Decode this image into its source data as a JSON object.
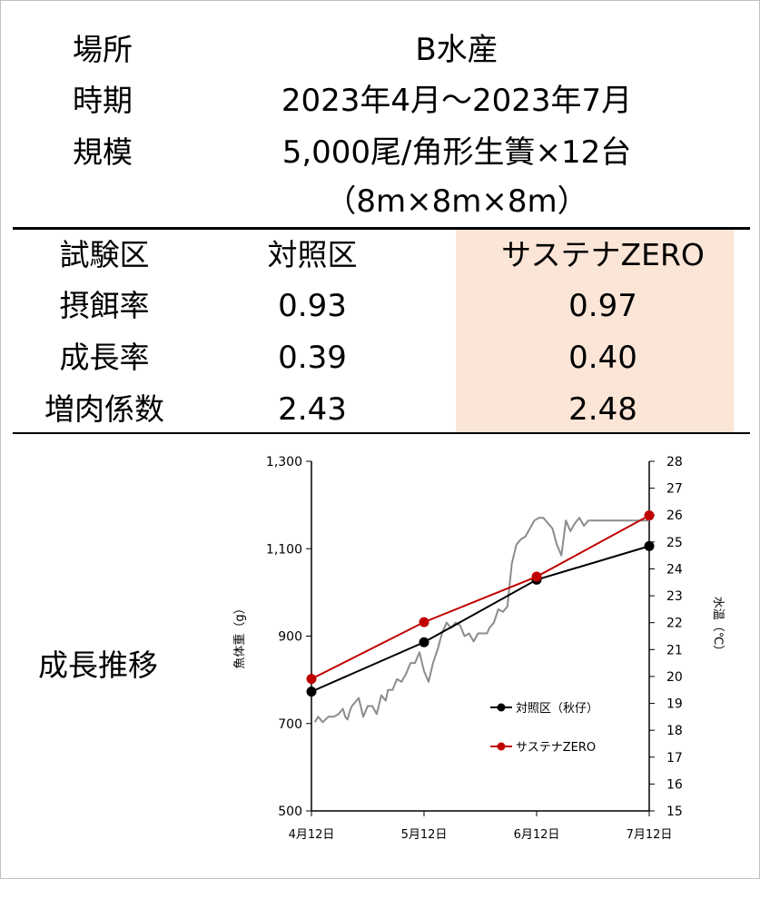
{
  "info": {
    "place_label": "場所",
    "place_value": "B水産",
    "period_label": "時期",
    "period_value": "2023年4月～2023年7月",
    "scale_label": "規模",
    "scale_value": "5,000尾/角形生簀×12台",
    "scale_value2": "（8m×8m×8m）"
  },
  "table": {
    "header": {
      "label": "試験区",
      "control": "対照区",
      "test": "サステナZERO"
    },
    "rows": [
      {
        "label": "摂餌率",
        "control": "0.93",
        "test": "0.97"
      },
      {
        "label": "成長率",
        "control": "0.39",
        "test": "0.40"
      },
      {
        "label": "増肉係数",
        "control": "2.43",
        "test": "2.48"
      }
    ],
    "highlight_color": "#fbe5d6"
  },
  "growth_label": "成長推移",
  "chart_data": {
    "type": "line",
    "x_categories": [
      "4月12日",
      "5月12日",
      "6月12日",
      "7月12日"
    ],
    "ylabel": "魚体重（g）",
    "ylim": [
      500,
      1300
    ],
    "yticks": [
      "500",
      "700",
      "900",
      "1,100",
      "1,300"
    ],
    "y2label": "水温（℃）",
    "y2lim": [
      15,
      28
    ],
    "y2ticks": [
      "15",
      "16",
      "17",
      "18",
      "19",
      "20",
      "21",
      "22",
      "23",
      "24",
      "25",
      "26",
      "27",
      "28"
    ],
    "legend_position": "inside-lower-right",
    "series": [
      {
        "name": "対照区（秋仔）",
        "color": "#000000",
        "x": [
          0,
          1,
          2,
          3
        ],
        "values": [
          773,
          886,
          1029,
          1106
        ]
      },
      {
        "name": "サステナZERO",
        "color": "#c00000",
        "x": [
          0,
          1,
          2,
          3
        ],
        "values": [
          802,
          932,
          1036,
          1176
        ]
      }
    ],
    "water_temp": {
      "axis": "secondary",
      "color": "#8c8c8c",
      "x": [
        0.03,
        0.06,
        0.1,
        0.15,
        0.2,
        0.24,
        0.26,
        0.28,
        0.3,
        0.32,
        0.34,
        0.36,
        0.38,
        0.42,
        0.46,
        0.5,
        0.54,
        0.58,
        0.62,
        0.66,
        0.68,
        0.72,
        0.76,
        0.8,
        0.84,
        0.88,
        0.92,
        0.96,
        1.0,
        1.04,
        1.08,
        1.12,
        1.16,
        1.2,
        1.24,
        1.28,
        1.32,
        1.36,
        1.4,
        1.44,
        1.48,
        1.52,
        1.56,
        1.58,
        1.62,
        1.66,
        1.7,
        1.74,
        1.78,
        1.82,
        1.86,
        1.9,
        1.94,
        1.98,
        2.02,
        2.06,
        2.1,
        2.14,
        2.18,
        2.22,
        2.26,
        2.3,
        2.34,
        2.38,
        2.42,
        2.46,
        2.5,
        2.54,
        2.58,
        2.62,
        2.66,
        2.7,
        2.74,
        2.78,
        2.82,
        2.86,
        2.9,
        2.92,
        2.96,
        3.0
      ],
      "values": [
        18.3,
        18.5,
        18.3,
        18.5,
        18.5,
        18.6,
        18.7,
        18.8,
        18.5,
        18.4,
        18.7,
        18.9,
        19.0,
        19.2,
        18.5,
        18.9,
        18.9,
        18.6,
        19.3,
        19.1,
        19.5,
        19.5,
        19.9,
        19.8,
        20.1,
        20.5,
        20.5,
        20.9,
        20.2,
        19.8,
        20.5,
        21.0,
        21.6,
        22.0,
        21.8,
        22.0,
        21.9,
        21.5,
        21.6,
        21.3,
        21.6,
        21.6,
        21.6,
        21.8,
        22.0,
        22.5,
        22.4,
        22.6,
        24.2,
        24.9,
        25.1,
        25.2,
        25.5,
        25.8,
        25.9,
        25.9,
        25.7,
        25.5,
        24.9,
        24.5,
        25.8,
        25.4,
        25.7,
        25.9,
        25.6,
        25.8,
        25.8,
        25.8,
        25.8,
        25.8,
        25.8,
        25.8,
        25.8,
        25.8,
        25.8,
        25.8,
        25.8,
        25.8,
        25.8,
        25.8
      ]
    }
  }
}
